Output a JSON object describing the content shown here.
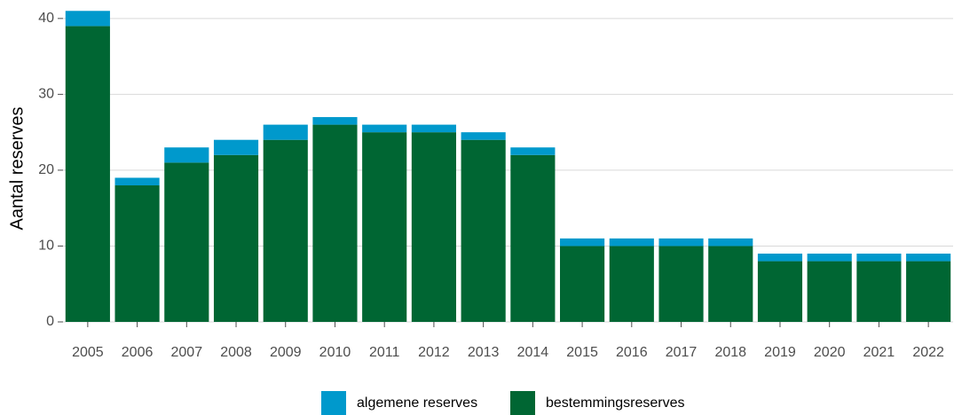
{
  "chart_data": {
    "type": "stacked_bar",
    "y_label": "Aantal reserves",
    "categories": [
      "2005",
      "2006",
      "2007",
      "2008",
      "2009",
      "2010",
      "2011",
      "2012",
      "2013",
      "2014",
      "2015",
      "2016",
      "2017",
      "2018",
      "2019",
      "2020",
      "2021",
      "2022"
    ],
    "series": [
      {
        "name": "algemene reserves",
        "color": "#0099cc",
        "values": [
          2,
          1,
          2,
          2,
          2,
          1,
          1,
          1,
          1,
          1,
          1,
          1,
          1,
          1,
          1,
          1,
          1,
          1
        ]
      },
      {
        "name": "bestemmingsreserves",
        "color": "#006633",
        "values": [
          39,
          18,
          21,
          22,
          24,
          26,
          25,
          25,
          24,
          22,
          10,
          10,
          10,
          10,
          8,
          8,
          8,
          8
        ]
      }
    ],
    "ylim": [
      0,
      41.5
    ],
    "yticks": [
      0,
      10,
      20,
      30,
      40
    ],
    "grid": true,
    "legend": "bottom"
  }
}
